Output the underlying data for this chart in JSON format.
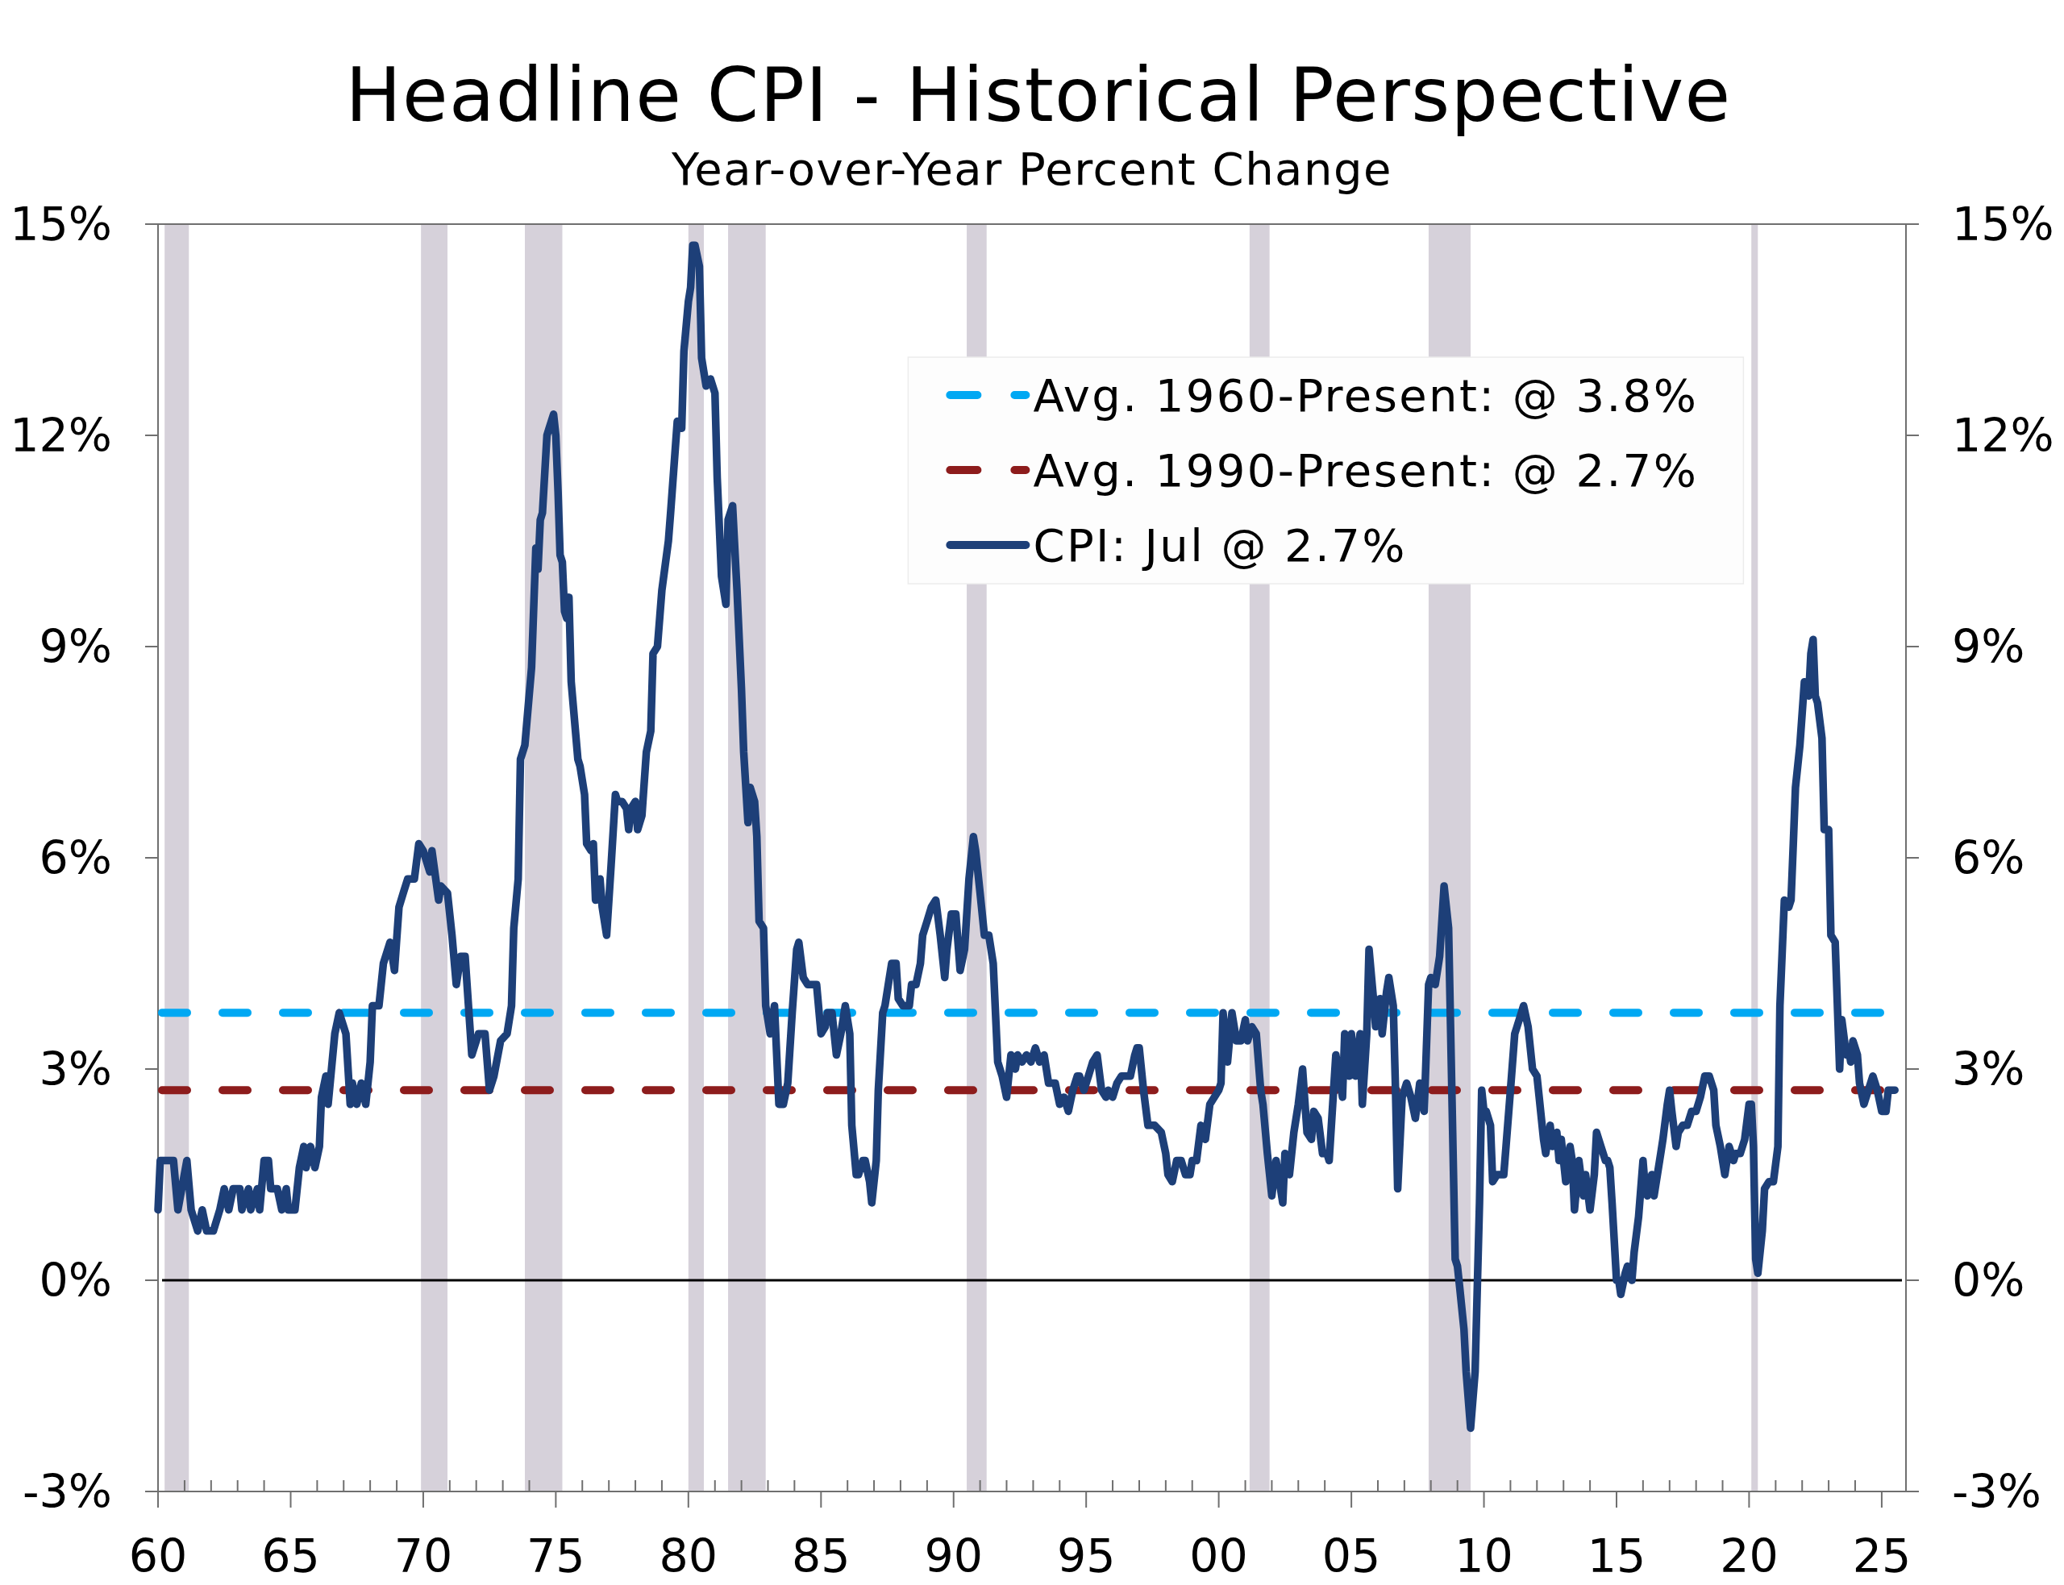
{
  "chart_data": {
    "type": "line",
    "title": "Headline CPI - Historical Perspective",
    "subtitle": "Year-over-Year Percent Change",
    "x": [
      "1960-01",
      "1960-02",
      "1960-08",
      "1960-10",
      "1961-02",
      "1961-04",
      "1961-07",
      "1961-09",
      "1961-11",
      "1962-02",
      "1962-05",
      "1962-07",
      "1962-09",
      "1962-11",
      "1963-02",
      "1963-03",
      "1963-06",
      "1963-07",
      "1963-10",
      "1963-11",
      "1964-01",
      "1964-03",
      "1964-04",
      "1964-07",
      "1964-09",
      "1964-11",
      "1964-12",
      "1965-03",
      "1965-05",
      "1965-07",
      "1965-08",
      "1965-10",
      "1965-12",
      "1966-02",
      "1966-03",
      "1966-05",
      "1966-06",
      "1966-09",
      "1966-11",
      "1967-02",
      "1967-04",
      "1967-05",
      "1967-07",
      "1967-09",
      "1967-11",
      "1968-01",
      "1968-02",
      "1968-05",
      "1968-07",
      "1968-10",
      "1968-12",
      "1969-02",
      "1969-04",
      "1969-06",
      "1969-09",
      "1969-11",
      "1970-01",
      "1970-04",
      "1970-05",
      "1970-08",
      "1970-09",
      "1970-12",
      "1971-02",
      "1971-04",
      "1971-06",
      "1971-08",
      "1971-11",
      "1972-02",
      "1972-05",
      "1972-07",
      "1972-09",
      "1972-12",
      "1973-03",
      "1973-05",
      "1973-06",
      "1973-08",
      "1973-09",
      "1973-11",
      "1974-02",
      "1974-04",
      "1974-05",
      "1974-06",
      "1974-07",
      "1974-09",
      "1974-10",
      "1974-12",
      "1975-01",
      "1975-02",
      "1975-03",
      "1975-04",
      "1975-05",
      "1975-06",
      "1975-07",
      "1975-08",
      "1975-11",
      "1975-12",
      "1976-02",
      "1976-03",
      "1976-05",
      "1976-06",
      "1976-07",
      "1976-09",
      "1976-10",
      "1976-12",
      "1977-02",
      "1977-04",
      "1977-05",
      "1977-07",
      "1977-09",
      "1977-10",
      "1977-11",
      "1978-01",
      "1978-02",
      "1978-04",
      "1978-06",
      "1978-08",
      "1978-09",
      "1978-11",
      "1979-01",
      "1979-04",
      "1979-05",
      "1979-08",
      "1979-10",
      "1979-11",
      "1980-01",
      "1980-02",
      "1980-03",
      "1980-04",
      "1980-06",
      "1980-07",
      "1980-09",
      "1980-11",
      "1981-01",
      "1981-02",
      "1981-04",
      "1981-06",
      "1981-07",
      "1981-09",
      "1981-10",
      "1981-11",
      "1982-01",
      "1982-02",
      "1982-04",
      "1982-05",
      "1982-07",
      "1982-08",
      "1982-09",
      "1982-11",
      "1982-12",
      "1983-02",
      "1983-04",
      "1983-06",
      "1983-08",
      "1983-10",
      "1983-12",
      "1984-02",
      "1984-03",
      "1984-05",
      "1984-07",
      "1984-09",
      "1984-11",
      "1985-01",
      "1985-03",
      "1985-04",
      "1985-06",
      "1985-08",
      "1985-10",
      "1985-12",
      "1986-02",
      "1986-03",
      "1986-05",
      "1986-06",
      "1986-08",
      "1986-09",
      "1986-11",
      "1986-12",
      "1987-02",
      "1987-03",
      "1987-05",
      "1987-06",
      "1987-08",
      "1987-09",
      "1987-11",
      "1987-12",
      "1988-02",
      "1988-05",
      "1988-06",
      "1988-08",
      "1988-10",
      "1988-11",
      "1989-01",
      "1989-03",
      "1989-05",
      "1989-07",
      "1989-09",
      "1989-10",
      "1989-12",
      "1990-02",
      "1990-04",
      "1990-06",
      "1990-08",
      "1990-10",
      "1990-11",
      "1991-01",
      "1991-03",
      "1991-05",
      "1991-07",
      "1991-09",
      "1991-11",
      "1992-01",
      "1992-03",
      "1992-05",
      "1992-06",
      "1992-08",
      "1992-10",
      "1992-12",
      "1993-02",
      "1993-04",
      "1993-06",
      "1993-08",
      "1993-09",
      "1993-11",
      "1994-01",
      "1994-03",
      "1994-05",
      "1994-07",
      "1994-09",
      "1994-10",
      "1994-12",
      "1995-02",
      "1995-04",
      "1995-06",
      "1995-08",
      "1995-10",
      "1995-11",
      "1996-01",
      "1996-03",
      "1996-05",
      "1996-07",
      "1996-09",
      "1996-11",
      "1996-12",
      "1997-01",
      "1997-03",
      "1997-05",
      "1997-08",
      "1997-11",
      "1998-01",
      "1998-02",
      "1998-04",
      "1998-06",
      "1998-08",
      "1998-10",
      "1998-12",
      "1999-01",
      "1999-03",
      "1999-05",
      "1999-07",
      "1999-09",
      "1999-11",
      "2000-01",
      "2000-02",
      "2000-03",
      "2000-05",
      "2000-07",
      "2000-09",
      "2000-11",
      "2001-01",
      "2001-02",
      "2001-04",
      "2001-06",
      "2001-08",
      "2001-09",
      "2001-11",
      "2002-01",
      "2002-03",
      "2002-04",
      "2002-06",
      "2002-07",
      "2002-09",
      "2002-11",
      "2003-01",
      "2003-03",
      "2003-05",
      "2003-07",
      "2003-08",
      "2003-10",
      "2003-12",
      "2004-02",
      "2004-03",
      "2004-05",
      "2004-06",
      "2004-09",
      "2004-10",
      "2004-12",
      "2005-01",
      "2005-03",
      "2005-05",
      "2005-06",
      "2005-08",
      "2005-09",
      "2005-11",
      "2005-12",
      "2006-02",
      "2006-03",
      "2006-05",
      "2006-06",
      "2006-08",
      "2006-09",
      "2006-10",
      "2006-12",
      "2007-02",
      "2007-04",
      "2007-06",
      "2007-08",
      "2007-10",
      "2007-12",
      "2008-01",
      "2008-03",
      "2008-05",
      "2008-07",
      "2008-09",
      "2008-12",
      "2009-01",
      "2009-02",
      "2009-04",
      "2009-05",
      "2009-07",
      "2009-09",
      "2009-11",
      "2009-12",
      "2010-01",
      "2010-02",
      "2010-04",
      "2010-05",
      "2010-07",
      "2010-08",
      "2010-10",
      "2010-11",
      "2011-01",
      "2011-03",
      "2011-04",
      "2011-06",
      "2011-07",
      "2011-09",
      "2011-11",
      "2012-01",
      "2012-02",
      "2012-04",
      "2012-05",
      "2012-07",
      "2012-08",
      "2012-10",
      "2012-11",
      "2012-12",
      "2013-02",
      "2013-04",
      "2013-05",
      "2013-06",
      "2013-08",
      "2013-10",
      "2013-11",
      "2014-01",
      "2014-03",
      "2014-04",
      "2014-06",
      "2014-08",
      "2014-09",
      "2014-10",
      "2014-11",
      "2015-01",
      "2015-02",
      "2015-03",
      "2015-05",
      "2015-06",
      "2015-08",
      "2015-09",
      "2015-11",
      "2016-01",
      "2016-02",
      "2016-03",
      "2016-05",
      "2016-06",
      "2016-09",
      "2016-10",
      "2016-12",
      "2017-01",
      "2017-02",
      "2017-04",
      "2017-05",
      "2017-07",
      "2017-09",
      "2017-11",
      "2018-01",
      "2018-03",
      "2018-05",
      "2018-07",
      "2018-09",
      "2018-10",
      "2018-12",
      "2019-02",
      "2019-04",
      "2019-06",
      "2019-07",
      "2019-09",
      "2019-11",
      "2020-01",
      "2020-02",
      "2020-03",
      "2020-04",
      "2020-05",
      "2020-07",
      "2020-08",
      "2020-10",
      "2020-12",
      "2021-02",
      "2021-03",
      "2021-05",
      "2021-07",
      "2021-08",
      "2021-09",
      "2021-10",
      "2021-12",
      "2022-02",
      "2022-04",
      "2022-05",
      "2022-06",
      "2022-07",
      "2022-08",
      "2022-10",
      "2022-11",
      "2023-01",
      "2023-02",
      "2023-04",
      "2023-06",
      "2023-07",
      "2023-09",
      "2023-10",
      "2023-11",
      "2023-12",
      "2024-02",
      "2024-03",
      "2024-05",
      "2024-07",
      "2024-09",
      "2024-11",
      "2025-01",
      "2025-03",
      "2025-04",
      "2025-06",
      "2025-07"
    ],
    "series": [
      {
        "name": "CPI: Jul @ 2.7%",
        "color": "#1d3f78",
        "values": [
          1.0,
          1.7,
          1.7,
          1.0,
          1.7,
          1.0,
          0.7,
          1.0,
          0.7,
          0.7,
          1.0,
          1.3,
          1.0,
          1.3,
          1.3,
          1.0,
          1.3,
          1.0,
          1.3,
          1.0,
          1.7,
          1.7,
          1.3,
          1.3,
          1.0,
          1.3,
          1.0,
          1.0,
          1.6,
          1.9,
          1.6,
          1.9,
          1.6,
          1.9,
          2.6,
          2.9,
          2.5,
          3.5,
          3.8,
          3.5,
          2.5,
          2.8,
          2.5,
          2.8,
          2.5,
          3.1,
          3.9,
          3.9,
          4.5,
          4.8,
          4.4,
          5.3,
          5.5,
          5.7,
          5.7,
          6.2,
          6.1,
          5.8,
          6.1,
          5.4,
          5.6,
          5.5,
          4.9,
          4.2,
          4.6,
          4.6,
          3.2,
          3.5,
          3.5,
          2.7,
          2.9,
          3.4,
          3.5,
          3.9,
          5.0,
          5.7,
          7.4,
          7.6,
          8.7,
          10.4,
          10.1,
          10.8,
          10.9,
          12.0,
          12.1,
          12.3,
          12.0,
          11.2,
          10.3,
          10.2,
          9.5,
          9.4,
          9.7,
          8.5,
          7.4,
          7.3,
          6.9,
          6.2,
          6.1,
          6.2,
          5.4,
          5.7,
          5.3,
          4.9,
          5.9,
          6.9,
          6.8,
          6.8,
          6.7,
          6.4,
          6.7,
          6.8,
          6.4,
          6.6,
          7.5,
          7.8,
          8.9,
          9.0,
          9.8,
          10.5,
          10.9,
          12.2,
          12.1,
          13.2,
          13.9,
          14.1,
          14.7,
          14.7,
          14.4,
          13.1,
          12.7,
          12.8,
          12.6,
          11.4,
          10.0,
          9.6,
          10.8,
          11.0,
          10.4,
          9.8,
          8.4,
          7.5,
          6.5,
          7.0,
          6.8,
          6.3,
          5.1,
          5.0,
          3.9,
          3.5,
          3.9,
          2.5,
          2.5,
          2.8,
          3.8,
          4.7,
          4.8,
          4.3,
          4.2,
          4.2,
          4.2,
          3.5,
          3.6,
          3.8,
          3.8,
          3.2,
          3.5,
          3.9,
          3.5,
          2.2,
          1.5,
          1.5,
          1.7,
          1.7,
          1.4,
          1.1,
          1.7,
          2.7,
          3.8,
          3.9,
          4.3,
          4.5,
          4.5,
          4.0,
          3.9,
          3.9,
          4.2,
          4.2,
          4.5,
          4.9,
          5.1,
          5.3,
          5.4,
          4.9,
          4.3,
          4.7,
          5.2,
          5.2,
          4.4,
          4.7,
          5.7,
          6.3,
          6.1,
          5.5,
          4.9,
          4.9,
          4.5,
          3.1,
          2.9,
          2.6,
          3.2,
          3.0,
          3.2,
          3.1,
          3.2,
          3.1,
          3.3,
          3.1,
          3.2,
          2.8,
          2.8,
          2.8,
          2.5,
          2.6,
          2.4,
          2.7,
          2.9,
          2.9,
          2.7,
          2.9,
          3.1,
          3.2,
          2.7,
          2.6,
          2.7,
          2.6,
          2.8,
          2.9,
          2.9,
          2.9,
          3.2,
          3.3,
          3.3,
          2.7,
          2.2,
          2.2,
          2.1,
          1.8,
          1.5,
          1.4,
          1.7,
          1.7,
          1.5,
          1.5,
          1.7,
          1.7,
          2.2,
          2.0,
          2.5,
          2.6,
          2.7,
          2.8,
          3.8,
          3.1,
          3.8,
          3.4,
          3.4,
          3.7,
          3.4,
          3.6,
          3.5,
          2.7,
          2.5,
          1.8,
          1.2,
          1.7,
          1.5,
          1.1,
          1.8,
          1.5,
          2.1,
          2.5,
          3.0,
          2.1,
          2.0,
          2.4,
          2.3,
          1.8,
          1.8,
          1.7,
          2.7,
          3.2,
          2.6,
          3.5,
          2.9,
          3.5,
          2.9,
          3.5,
          2.5,
          3.5,
          4.7,
          4.0,
          3.6,
          4.0,
          3.5,
          4.1,
          4.3,
          3.9,
          2.7,
          1.3,
          2.6,
          2.8,
          2.6,
          2.3,
          2.8,
          2.4,
          4.2,
          4.3,
          4.2,
          4.6,
          5.6,
          5.0,
          0.3,
          0.2,
          -0.1,
          -0.7,
          -1.3,
          -2.1,
          -1.3,
          1.1,
          2.7,
          2.4,
          2.4,
          2.2,
          1.4,
          1.5,
          1.5,
          1.5,
          1.9,
          2.7,
          3.5,
          3.6,
          3.8,
          3.9,
          3.6,
          3.0,
          2.9,
          2.6,
          2.0,
          1.8,
          2.2,
          1.9,
          2.1,
          1.7,
          2.0,
          1.4,
          1.9,
          1.7,
          1.0,
          1.7,
          1.2,
          1.5,
          1.0,
          1.5,
          2.1,
          1.9,
          1.7,
          1.7,
          1.6,
          1.1,
          0.0,
          0.0,
          -0.2,
          0.1,
          0.2,
          0.0,
          0.4,
          0.9,
          1.7,
          1.3,
          1.2,
          1.5,
          1.2,
          1.8,
          2.0,
          2.5,
          2.7,
          2.4,
          1.9,
          2.1,
          2.2,
          2.2,
          2.4,
          2.4,
          2.6,
          2.9,
          2.9,
          2.7,
          2.2,
          1.9,
          1.5,
          1.9,
          1.7,
          1.8,
          1.8,
          2.0,
          2.5,
          2.5,
          1.9,
          0.3,
          0.1,
          0.7,
          1.3,
          1.4,
          1.4,
          1.9,
          3.9,
          5.4,
          5.3,
          5.4,
          6.2,
          7.0,
          7.6,
          8.5,
          8.3,
          8.9,
          9.1,
          8.3,
          8.2,
          7.7,
          6.4,
          6.4,
          4.9,
          4.8,
          3.0,
          3.7,
          3.2,
          3.3,
          3.1,
          3.4,
          3.2,
          2.8,
          2.5,
          2.7,
          2.9,
          2.7,
          2.4,
          2.4,
          2.7,
          2.7,
          2.7
        ]
      }
    ],
    "xlim": [
      "1960-01",
      "2025-12"
    ],
    "xticks": [
      {
        "value": "1960-01",
        "label": "60"
      },
      {
        "value": "1961-01",
        "label": null
      },
      {
        "value": "1962-01",
        "label": null
      },
      {
        "value": "1963-01",
        "label": null
      },
      {
        "value": "1964-01",
        "label": null
      },
      {
        "value": "1965-01",
        "label": "65"
      },
      {
        "value": "1966-01",
        "label": null
      },
      {
        "value": "1967-01",
        "label": null
      },
      {
        "value": "1968-01",
        "label": null
      },
      {
        "value": "1969-01",
        "label": null
      },
      {
        "value": "1970-01",
        "label": "70"
      },
      {
        "value": "1971-01",
        "label": null
      },
      {
        "value": "1972-01",
        "label": null
      },
      {
        "value": "1973-01",
        "label": null
      },
      {
        "value": "1974-01",
        "label": null
      },
      {
        "value": "1975-01",
        "label": "75"
      },
      {
        "value": "1976-01",
        "label": null
      },
      {
        "value": "1977-01",
        "label": null
      },
      {
        "value": "1978-01",
        "label": null
      },
      {
        "value": "1979-01",
        "label": null
      },
      {
        "value": "1980-01",
        "label": "80"
      },
      {
        "value": "1981-01",
        "label": null
      },
      {
        "value": "1982-01",
        "label": null
      },
      {
        "value": "1983-01",
        "label": null
      },
      {
        "value": "1984-01",
        "label": null
      },
      {
        "value": "1985-01",
        "label": "85"
      },
      {
        "value": "1986-01",
        "label": null
      },
      {
        "value": "1987-01",
        "label": null
      },
      {
        "value": "1988-01",
        "label": null
      },
      {
        "value": "1989-01",
        "label": null
      },
      {
        "value": "1990-01",
        "label": "90"
      },
      {
        "value": "1991-01",
        "label": null
      },
      {
        "value": "1992-01",
        "label": null
      },
      {
        "value": "1993-01",
        "label": null
      },
      {
        "value": "1994-01",
        "label": null
      },
      {
        "value": "1995-01",
        "label": "95"
      },
      {
        "value": "1996-01",
        "label": null
      },
      {
        "value": "1997-01",
        "label": null
      },
      {
        "value": "1998-01",
        "label": null
      },
      {
        "value": "1999-01",
        "label": null
      },
      {
        "value": "2000-01",
        "label": "00"
      },
      {
        "value": "2001-01",
        "label": null
      },
      {
        "value": "2002-01",
        "label": null
      },
      {
        "value": "2003-01",
        "label": null
      },
      {
        "value": "2004-01",
        "label": null
      },
      {
        "value": "2005-01",
        "label": "05"
      },
      {
        "value": "2006-01",
        "label": null
      },
      {
        "value": "2007-01",
        "label": null
      },
      {
        "value": "2008-01",
        "label": null
      },
      {
        "value": "2009-01",
        "label": null
      },
      {
        "value": "2010-01",
        "label": "10"
      },
      {
        "value": "2011-01",
        "label": null
      },
      {
        "value": "2012-01",
        "label": null
      },
      {
        "value": "2013-01",
        "label": null
      },
      {
        "value": "2014-01",
        "label": null
      },
      {
        "value": "2015-01",
        "label": "15"
      },
      {
        "value": "2016-01",
        "label": null
      },
      {
        "value": "2017-01",
        "label": null
      },
      {
        "value": "2018-01",
        "label": null
      },
      {
        "value": "2019-01",
        "label": null
      },
      {
        "value": "2020-01",
        "label": "20"
      },
      {
        "value": "2021-01",
        "label": null
      },
      {
        "value": "2022-01",
        "label": null
      },
      {
        "value": "2023-01",
        "label": null
      },
      {
        "value": "2024-01",
        "label": null
      },
      {
        "value": "2025-01",
        "label": "25"
      }
    ],
    "ylim": [
      -3,
      15
    ],
    "yticks": [
      {
        "value": -3,
        "label": "-3%"
      },
      {
        "value": 0,
        "label": "0%"
      },
      {
        "value": 3,
        "label": "3%"
      },
      {
        "value": 6,
        "label": "6%"
      },
      {
        "value": 9,
        "label": "9%"
      },
      {
        "value": 12,
        "label": "12%"
      },
      {
        "value": 15,
        "label": "15%"
      }
    ],
    "y2lim": [
      -3,
      15
    ],
    "y2ticks": [
      {
        "value": -3,
        "label": "-3%"
      },
      {
        "value": 0,
        "label": "0%"
      },
      {
        "value": 3,
        "label": "3%"
      },
      {
        "value": 6,
        "label": "6%"
      },
      {
        "value": 9,
        "label": "9%"
      },
      {
        "value": 12,
        "label": "12%"
      },
      {
        "value": 15,
        "label": "15%"
      }
    ],
    "ref_lines": [
      {
        "axis": "y",
        "value": 3.8,
        "label": "Avg. 1960-Present: @ 3.8%",
        "color": "#00a8f3",
        "line_style": "dashed"
      },
      {
        "axis": "y",
        "value": 2.7,
        "label": "Avg. 1990-Present: @ 2.7%",
        "color": "#8d1c1c",
        "line_style": "dashed"
      },
      {
        "axis": "y",
        "value": 0,
        "color": "#000000",
        "line_style": "solid"
      }
    ],
    "bands": [
      {
        "axis": "x",
        "from": "1960-04",
        "to": "1961-03",
        "color": "#d6d1da"
      },
      {
        "axis": "x",
        "from": "1969-12",
        "to": "1970-12",
        "color": "#d6d1da"
      },
      {
        "axis": "x",
        "from": "1973-11",
        "to": "1975-04",
        "color": "#d6d1da"
      },
      {
        "axis": "x",
        "from": "1980-01",
        "to": "1980-08",
        "color": "#d6d1da"
      },
      {
        "axis": "x",
        "from": "1981-07",
        "to": "1982-12",
        "color": "#d6d1da"
      },
      {
        "axis": "x",
        "from": "1990-07",
        "to": "1991-04",
        "color": "#d6d1da"
      },
      {
        "axis": "x",
        "from": "2001-03",
        "to": "2001-12",
        "color": "#d6d1da"
      },
      {
        "axis": "x",
        "from": "2007-12",
        "to": "2009-07",
        "color": "#d6d1da"
      },
      {
        "axis": "x",
        "from": "2020-02",
        "to": "2020-05",
        "color": "#d6d1da"
      }
    ],
    "legend": "top right"
  }
}
